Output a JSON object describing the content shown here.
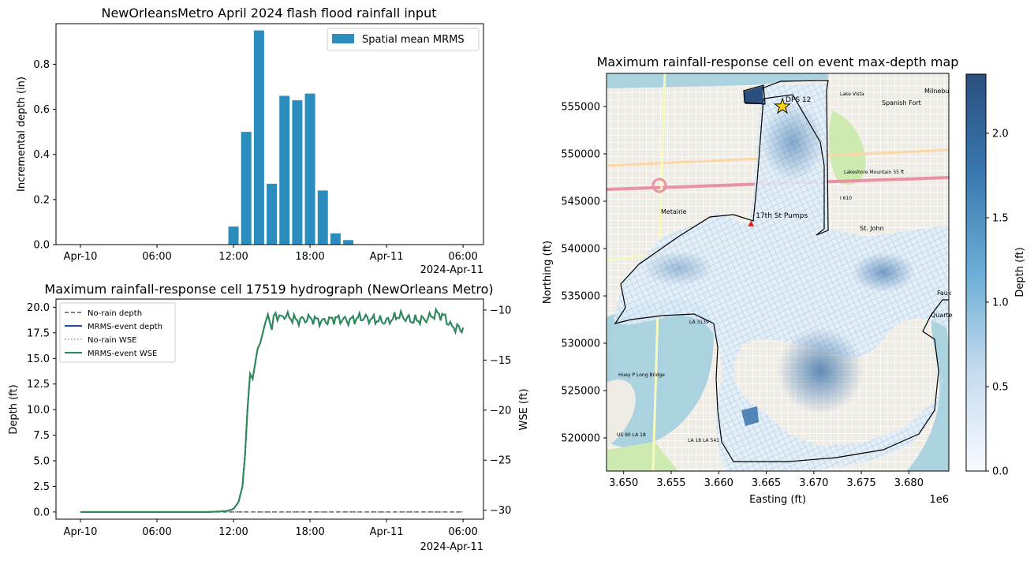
{
  "chart_data": [
    {
      "type": "bar",
      "title": "NewOrleansMetro April 2024 flash flood rainfall input",
      "xlabel": "",
      "ylabel": "Incremental depth (in)",
      "x_ticks": [
        "Apr-10",
        "06:00",
        "12:00",
        "18:00",
        "Apr-11",
        "06:00"
      ],
      "x_offset_label": "2024-Apr-11",
      "y_ticks": [
        "0.0",
        "0.2",
        "0.4",
        "0.6",
        "0.8"
      ],
      "ylim": [
        0,
        0.98
      ],
      "legend": [
        "Spatial mean MRMS"
      ],
      "legend_position": "top-right",
      "color": "#2b8cbe",
      "series": [
        {
          "name": "Spatial mean MRMS",
          "hours": [
            12,
            13,
            14,
            15,
            16,
            17,
            18,
            19,
            20,
            21
          ],
          "values": [
            0.08,
            0.5,
            0.95,
            0.27,
            0.66,
            0.64,
            0.67,
            0.24,
            0.05,
            0.02
          ]
        }
      ]
    },
    {
      "type": "line",
      "title": "Maximum rainfall-response cell 17519 hydrograph (NewOrleans Metro)",
      "xlabel": "",
      "ylabel": "Depth (ft)",
      "ylabel_right": "WSE (ft)",
      "x_ticks": [
        "Apr-10",
        "06:00",
        "12:00",
        "18:00",
        "Apr-11",
        "06:00"
      ],
      "x_offset_label": "2024-Apr-11",
      "y_ticks": [
        "0.0",
        "2.5",
        "5.0",
        "7.5",
        "10.0",
        "12.5",
        "15.0",
        "17.5",
        "20.0"
      ],
      "y_right_ticks": [
        "−30",
        "−25",
        "−20",
        "−15",
        "−10"
      ],
      "ylim": [
        -0.7,
        20.8
      ],
      "y_right_lim": [
        -30.9,
        -8.9
      ],
      "legend": [
        "No-rain depth",
        "MRMS-event depth",
        "No-rain WSE",
        "MRMS-event WSE"
      ],
      "legend_position": "top-left",
      "series": [
        {
          "name": "No-rain depth",
          "style": "dashed",
          "color": "#555555",
          "x_hours": [
            0,
            30
          ],
          "y": [
            0,
            0
          ]
        },
        {
          "name": "MRMS-event depth",
          "style": "solid",
          "color": "#1f4e9c",
          "x_hours": [
            0,
            10,
            11.5,
            12,
            12.4,
            12.7,
            12.9,
            13.1,
            13.3,
            13.5,
            13.7,
            13.9,
            14.1,
            14.3,
            14.5,
            14.7,
            15,
            15.3,
            15.6,
            16,
            17,
            18,
            19,
            20,
            21,
            22,
            23,
            24,
            25,
            26,
            27,
            28,
            28.6,
            29,
            29.4,
            29.8,
            30
          ],
          "y": [
            0,
            0,
            0.1,
            0.3,
            1.0,
            2.5,
            5.5,
            10.0,
            13.5,
            13.0,
            14.5,
            16.0,
            16.5,
            17.5,
            18.5,
            19.3,
            17.8,
            19.5,
            18.9,
            19.2,
            18.7,
            18.9,
            18.6,
            18.9,
            18.7,
            19.0,
            18.8,
            18.6,
            19.2,
            18.7,
            18.8,
            19.4,
            19.0,
            18.2,
            18.0,
            17.9,
            18.0
          ]
        },
        {
          "name": "No-rain WSE",
          "style": "dotted",
          "color": "#999999",
          "x_hours": [
            0,
            30
          ],
          "y": [
            0,
            0
          ]
        },
        {
          "name": "MRMS-event WSE",
          "style": "solid",
          "color": "#2e8b57",
          "x_hours": [
            0,
            10,
            11.5,
            12,
            12.4,
            12.7,
            12.9,
            13.1,
            13.3,
            13.5,
            13.7,
            13.9,
            14.1,
            14.3,
            14.5,
            14.7,
            15,
            15.3,
            15.6,
            16,
            17,
            18,
            19,
            20,
            21,
            22,
            23,
            24,
            25,
            26,
            27,
            28,
            28.6,
            29,
            29.4,
            29.8,
            30
          ],
          "y": [
            0,
            0,
            0.1,
            0.3,
            1.0,
            2.5,
            5.5,
            10.0,
            13.5,
            13.0,
            14.5,
            16.0,
            16.5,
            17.5,
            18.5,
            19.3,
            17.8,
            19.5,
            18.9,
            19.2,
            18.7,
            18.9,
            18.6,
            18.9,
            18.7,
            19.0,
            18.8,
            18.6,
            19.2,
            18.7,
            18.8,
            19.4,
            19.0,
            18.2,
            18.0,
            17.9,
            18.0
          ]
        }
      ]
    },
    {
      "type": "heatmap",
      "title": "Maximum rainfall-response cell on event max-depth map",
      "xlabel": "Easting (ft)",
      "ylabel": "Northing (ft)",
      "x_ticks": [
        "3.650",
        "3.655",
        "3.660",
        "3.665",
        "3.670",
        "3.675",
        "3.680"
      ],
      "x_tick_values": [
        3650000,
        3655000,
        3660000,
        3665000,
        3670000,
        3675000,
        3680000
      ],
      "x_multiplier": "1e6",
      "xlim": [
        3648200,
        3684200
      ],
      "y_ticks": [
        "520000",
        "525000",
        "530000",
        "535000",
        "540000",
        "545000",
        "550000",
        "555000"
      ],
      "ylim": [
        516500,
        558500
      ],
      "colorbar": {
        "label": "Depth (ft)",
        "ticks": [
          "0.0",
          "0.5",
          "1.0",
          "1.5",
          "2.0"
        ],
        "range": [
          0,
          2.35
        ],
        "colormap": "Blues"
      },
      "annotations": [
        {
          "label": "DPS 12",
          "marker": "star",
          "color": "#ffd700",
          "x": 3666700,
          "y": 555000
        },
        {
          "label": "17th St Pumps",
          "marker": "triangle",
          "color": "#e41a1c",
          "x": 3663400,
          "y": 542600
        }
      ],
      "basemap_labels": [
        "Spanish Fort",
        "Milnebu",
        "Lake Vista",
        "Metairie",
        "I 610",
        "Lakeshore Mountain 55 ft",
        "LA 3139",
        "Huey P Long Bridge",
        "US 90 LA 18",
        "LA 18 LA 541",
        "Fauk",
        "Quarte",
        "St. John"
      ]
    }
  ]
}
